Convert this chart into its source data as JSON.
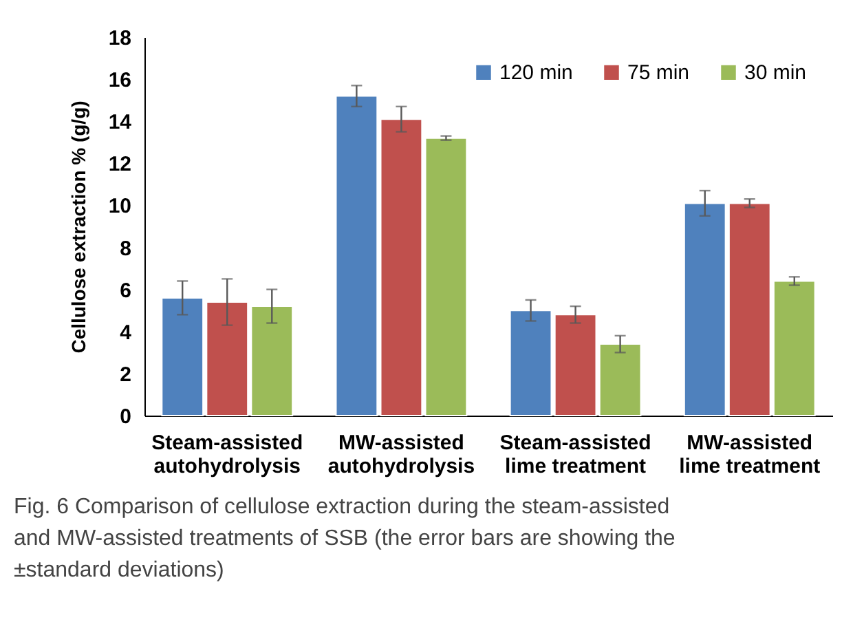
{
  "chart_data": {
    "type": "bar",
    "ylabel": "Cellulose extraction % (g/g)",
    "categories": [
      "Steam-assisted autohydrolysis",
      "MW-assisted autohydrolysis",
      "Steam-assisted lime treatment",
      "MW-assisted lime treatment"
    ],
    "series": [
      {
        "name": "120 min",
        "color": "#4f81bd",
        "values": [
          5.6,
          15.2,
          5.0,
          10.1
        ],
        "errors": [
          0.8,
          0.5,
          0.5,
          0.6
        ]
      },
      {
        "name": "75 min",
        "color": "#c0504d",
        "values": [
          5.4,
          14.1,
          4.8,
          10.1
        ],
        "errors": [
          1.1,
          0.6,
          0.4,
          0.2
        ]
      },
      {
        "name": "30 min",
        "color": "#9bbb59",
        "values": [
          5.2,
          13.2,
          3.4,
          6.4
        ],
        "errors": [
          0.8,
          0.1,
          0.4,
          0.2
        ]
      }
    ],
    "ylim": [
      0,
      18
    ],
    "yticks": [
      0,
      2,
      4,
      6,
      8,
      10,
      12,
      14,
      16,
      18
    ],
    "grid": false,
    "legend": "top right",
    "annotations": [
      "Fig. 6 Comparison of cellulose extraction during the steam-assisted and MW-assisted treatments of SSB (the error bars are showing the ±standard deviations)"
    ]
  }
}
